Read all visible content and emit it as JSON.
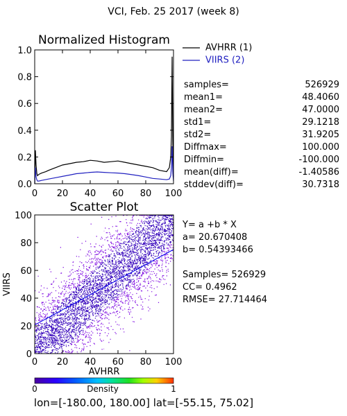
{
  "title": "VCI,  Feb. 25 2017 (week 8)",
  "colors": {
    "avhrr": "#000000",
    "viirs": "#2020c0",
    "scatter_dense": "#3300bb",
    "scatter_light": "#7a00e0"
  },
  "stats": [
    {
      "label": "samples=",
      "value": "526929"
    },
    {
      "label": "mean1=",
      "value": "48.4060"
    },
    {
      "label": "mean2=",
      "value": "47.0000"
    },
    {
      "label": "std1=",
      "value": "29.1218"
    },
    {
      "label": "std2=",
      "value": "31.9205"
    },
    {
      "label": "Diffmax=",
      "value": "100.000"
    },
    {
      "label": "Diffmin=",
      "value": "-100.000"
    },
    {
      "label": "mean(diff)=",
      "value": "-1.40586"
    },
    {
      "label": "stddev(diff)=",
      "value": "30.7318"
    }
  ],
  "regression": {
    "equation": "Y= a +b * X",
    "a_text": "a= 20.670408",
    "b_text": "b= 0.54393466",
    "samples_text": "Samples= 526929",
    "cc_text": "CC=  0.4962",
    "rmse_text": "RMSE= 27.714464"
  },
  "colorbar": {
    "min_label": "0",
    "max_label": "1",
    "label": "Density"
  },
  "footer": "lon=[-180.00, 180.00] lat=[-55.15, 75.02]",
  "chart_data": [
    {
      "type": "line",
      "title": "Normalized Histogram",
      "xlim": [
        0,
        100
      ],
      "ylim": [
        0,
        1.0
      ],
      "xticks": [
        "0",
        "20",
        "40",
        "60",
        "80",
        "100"
      ],
      "yticks": [
        "0.0",
        "0.2",
        "0.4",
        "0.6",
        "0.8",
        "1.0"
      ],
      "series": [
        {
          "name": "AVHRR (1)",
          "color": "#000000",
          "x": [
            0,
            0.5,
            1,
            1.5,
            2,
            3,
            5,
            8,
            10,
            15,
            20,
            25,
            30,
            35,
            40,
            45,
            50,
            55,
            60,
            65,
            70,
            75,
            80,
            85,
            90,
            95,
            97,
            98,
            98.5,
            99,
            99.5,
            100
          ],
          "y": [
            0.0,
            0.25,
            0.14,
            0.08,
            0.06,
            0.07,
            0.08,
            0.09,
            0.1,
            0.12,
            0.14,
            0.15,
            0.16,
            0.165,
            0.175,
            0.17,
            0.16,
            0.165,
            0.17,
            0.16,
            0.15,
            0.14,
            0.13,
            0.12,
            0.1,
            0.09,
            0.12,
            0.2,
            0.35,
            0.95,
            0.3,
            0.05
          ]
        },
        {
          "name": "VIIRS (2)",
          "color": "#2020c0",
          "x": [
            0,
            0.5,
            1,
            1.5,
            2,
            3,
            5,
            10,
            15,
            20,
            25,
            30,
            35,
            40,
            45,
            50,
            55,
            60,
            65,
            70,
            75,
            80,
            85,
            90,
            95,
            97,
            98,
            98.5,
            99,
            99.5,
            100
          ],
          "y": [
            0.0,
            0.12,
            0.05,
            0.03,
            0.02,
            0.02,
            0.025,
            0.035,
            0.045,
            0.055,
            0.065,
            0.075,
            0.08,
            0.085,
            0.088,
            0.085,
            0.082,
            0.08,
            0.075,
            0.068,
            0.06,
            0.05,
            0.04,
            0.035,
            0.03,
            0.035,
            0.06,
            0.12,
            0.28,
            0.08,
            0.02
          ]
        }
      ]
    },
    {
      "type": "scatter",
      "title": "Scatter Plot",
      "xlabel": "AVHRR",
      "ylabel": "VIIRS",
      "xlim": [
        0,
        100
      ],
      "ylim": [
        0,
        100
      ],
      "xticks": [
        "0",
        "20",
        "40",
        "60",
        "80",
        "100"
      ],
      "yticks": [
        "0",
        "20",
        "40",
        "60",
        "80",
        "100"
      ],
      "regression": {
        "a": 20.670408,
        "b": 0.54393466
      },
      "samples": 526929,
      "cc": 0.4962
    }
  ]
}
